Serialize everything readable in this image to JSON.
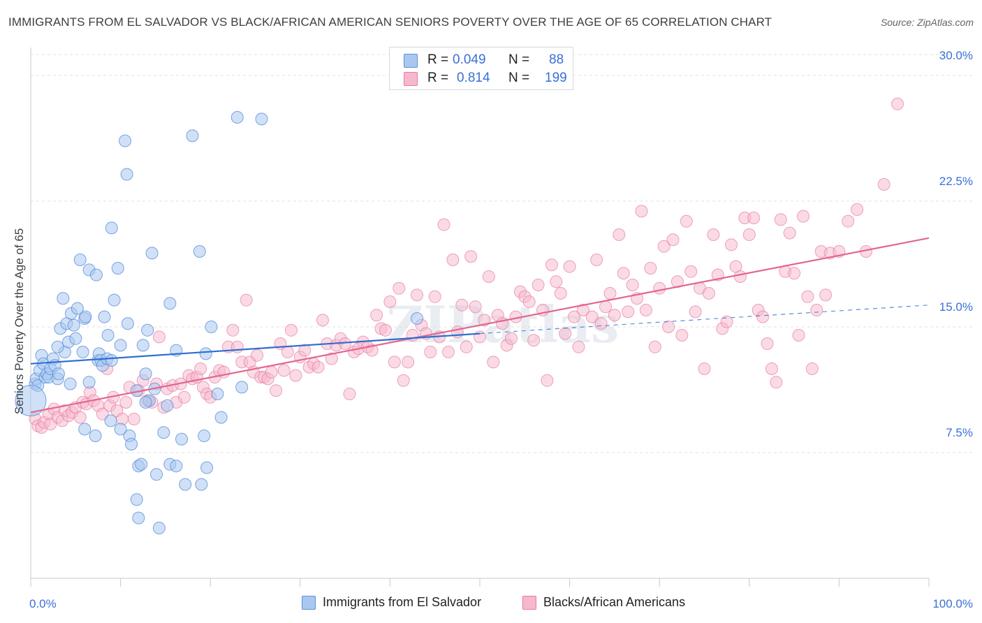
{
  "title": "IMMIGRANTS FROM EL SALVADOR VS BLACK/AFRICAN AMERICAN SENIORS POVERTY OVER THE AGE OF 65 CORRELATION CHART",
  "source": "Source: ZipAtlas.com",
  "watermark": "ZIPatlas",
  "legend": {
    "rows": [
      {
        "r_label": "R =",
        "r_value": "0.049",
        "n_label": "N =",
        "n_value": "88"
      },
      {
        "r_label": "R =",
        "r_value": "0.814",
        "n_label": "N =",
        "n_value": "199"
      }
    ]
  },
  "bottom_legend": [
    "Immigrants from El Salvador",
    "Blacks/African Americans"
  ],
  "colors": {
    "blue_fill": "#a9c8f0",
    "blue_stroke": "#5b8fd9",
    "blue_line": "#2f6fd0",
    "pink_fill": "#f5b8cc",
    "pink_stroke": "#e97aa0",
    "pink_line": "#e3668f",
    "tick_text": "#3a6fd8",
    "grid": "#e2e2e2"
  },
  "chart_data": {
    "type": "scatter",
    "title": "IMMIGRANTS FROM EL SALVADOR VS BLACK/AFRICAN AMERICAN SENIORS POVERTY OVER THE AGE OF 65 CORRELATION CHART",
    "xlabel": "",
    "ylabel": "Seniors Poverty Over the Age of 65",
    "xlim": [
      0,
      100
    ],
    "ylim": [
      0,
      31.5
    ],
    "x_ticks": [
      "0.0%",
      "100.0%"
    ],
    "y_ticks": [
      {
        "value": 7.5,
        "label": "7.5%"
      },
      {
        "value": 15.0,
        "label": "15.0%"
      },
      {
        "value": 22.5,
        "label": "22.5%"
      },
      {
        "value": 30.0,
        "label": "30.0%"
      }
    ],
    "grid": true,
    "legend_position": "top-center",
    "series": [
      {
        "name": "Immigrants from El Salvador",
        "R": 0.049,
        "N": 88,
        "trend": {
          "x0": 0,
          "y0": 12.8,
          "x1": 50,
          "y1": 14.6,
          "dashed_to_x": 100,
          "dashed_to_y": 16.3
        },
        "points": [
          [
            0.5,
            11.6
          ],
          [
            0.6,
            11.9
          ],
          [
            0.8,
            11.5
          ],
          [
            1.0,
            12.4
          ],
          [
            1.2,
            13.3
          ],
          [
            1.4,
            12.8
          ],
          [
            1.6,
            12.0
          ],
          [
            1.8,
            12.2
          ],
          [
            2.0,
            12.0
          ],
          [
            2.2,
            12.5
          ],
          [
            2.5,
            13.1
          ],
          [
            2.7,
            12.7
          ],
          [
            3.0,
            11.9
          ],
          [
            3.1,
            12.2
          ],
          [
            3.3,
            14.9
          ],
          [
            3.6,
            16.7
          ],
          [
            3.8,
            13.5
          ],
          [
            4.0,
            15.2
          ],
          [
            4.2,
            14.1
          ],
          [
            4.4,
            11.6
          ],
          [
            4.5,
            15.8
          ],
          [
            4.8,
            15.1
          ],
          [
            5.0,
            14.3
          ],
          [
            5.2,
            16.1
          ],
          [
            5.5,
            19.0
          ],
          [
            5.8,
            13.5
          ],
          [
            6.0,
            15.5
          ],
          [
            6.1,
            15.6
          ],
          [
            6.5,
            11.7
          ],
          [
            6.5,
            18.4
          ],
          [
            7.3,
            18.1
          ],
          [
            7.5,
            13.0
          ],
          [
            7.6,
            13.4
          ],
          [
            7.8,
            13.0
          ],
          [
            8.0,
            12.7
          ],
          [
            8.2,
            15.6
          ],
          [
            8.5,
            13.1
          ],
          [
            8.6,
            14.5
          ],
          [
            8.9,
            9.4
          ],
          [
            9.0,
            20.9
          ],
          [
            9.3,
            16.6
          ],
          [
            9.7,
            18.5
          ],
          [
            10.0,
            13.9
          ],
          [
            10.5,
            26.1
          ],
          [
            10.7,
            24.1
          ],
          [
            10.8,
            15.2
          ],
          [
            11.0,
            8.5
          ],
          [
            11.2,
            8.0
          ],
          [
            11.8,
            11.2
          ],
          [
            12.0,
            6.7
          ],
          [
            12.3,
            6.8
          ],
          [
            12.5,
            13.9
          ],
          [
            12.8,
            12.2
          ],
          [
            13.0,
            14.8
          ],
          [
            13.2,
            10.6
          ],
          [
            13.5,
            19.4
          ],
          [
            13.8,
            11.3
          ],
          [
            14.0,
            6.2
          ],
          [
            14.8,
            8.7
          ],
          [
            15.2,
            10.3
          ],
          [
            15.5,
            16.4
          ],
          [
            15.5,
            6.8
          ],
          [
            16.2,
            13.6
          ],
          [
            16.8,
            8.3
          ],
          [
            17.2,
            5.6
          ],
          [
            18.0,
            26.4
          ],
          [
            18.8,
            19.5
          ],
          [
            19.3,
            8.5
          ],
          [
            19.6,
            6.6
          ],
          [
            19.5,
            13.4
          ],
          [
            20.1,
            15.0
          ],
          [
            20.8,
            11.0
          ],
          [
            21.2,
            9.6
          ],
          [
            23.5,
            11.4
          ],
          [
            23.0,
            27.5
          ],
          [
            25.7,
            27.4
          ],
          [
            6.0,
            8.9
          ],
          [
            7.2,
            8.5
          ],
          [
            10.0,
            8.9
          ],
          [
            11.8,
            4.7
          ],
          [
            12.0,
            3.6
          ],
          [
            14.3,
            3.0
          ],
          [
            16.2,
            6.7
          ],
          [
            19.0,
            5.6
          ],
          [
            9.0,
            13.0
          ],
          [
            12.8,
            10.5
          ],
          [
            3.0,
            13.8
          ],
          [
            43.0,
            15.5
          ]
        ]
      },
      {
        "name": "Blacks/African Americans",
        "R": 0.814,
        "N": 199,
        "trend": {
          "x0": 0,
          "y0": 9.9,
          "x1": 100,
          "y1": 20.3
        },
        "points": [
          [
            0.5,
            9.5
          ],
          [
            0.8,
            9.1
          ],
          [
            1.2,
            9.0
          ],
          [
            1.5,
            9.3
          ],
          [
            2.0,
            9.8
          ],
          [
            2.2,
            9.2
          ],
          [
            2.6,
            10.1
          ],
          [
            3.0,
            9.6
          ],
          [
            3.5,
            9.4
          ],
          [
            3.8,
            10.0
          ],
          [
            4.2,
            9.7
          ],
          [
            4.6,
            9.9
          ],
          [
            5.0,
            10.2
          ],
          [
            5.5,
            9.6
          ],
          [
            5.8,
            10.5
          ],
          [
            6.2,
            10.4
          ],
          [
            6.6,
            11.1
          ],
          [
            7.0,
            10.6
          ],
          [
            7.5,
            10.3
          ],
          [
            8.0,
            9.8
          ],
          [
            8.5,
            12.5
          ],
          [
            8.8,
            10.3
          ],
          [
            9.2,
            10.8
          ],
          [
            9.6,
            10.0
          ],
          [
            10.2,
            9.5
          ],
          [
            10.6,
            10.5
          ],
          [
            11.0,
            11.4
          ],
          [
            11.5,
            9.5
          ],
          [
            12.0,
            11.2
          ],
          [
            12.5,
            11.8
          ],
          [
            13.0,
            10.6
          ],
          [
            13.5,
            10.5
          ],
          [
            14.0,
            11.6
          ],
          [
            14.3,
            14.4
          ],
          [
            14.8,
            10.2
          ],
          [
            15.2,
            11.3
          ],
          [
            15.8,
            11.5
          ],
          [
            16.2,
            10.5
          ],
          [
            16.7,
            11.6
          ],
          [
            17.1,
            10.8
          ],
          [
            17.6,
            12.1
          ],
          [
            18.0,
            11.9
          ],
          [
            18.5,
            12.0
          ],
          [
            18.9,
            12.5
          ],
          [
            19.2,
            11.4
          ],
          [
            19.6,
            11.0
          ],
          [
            20.0,
            10.8
          ],
          [
            20.5,
            12.0
          ],
          [
            21.0,
            12.4
          ],
          [
            21.5,
            12.3
          ],
          [
            22.0,
            13.8
          ],
          [
            22.5,
            14.8
          ],
          [
            23.0,
            13.8
          ],
          [
            23.5,
            12.9
          ],
          [
            24.0,
            16.6
          ],
          [
            24.4,
            12.9
          ],
          [
            24.8,
            12.3
          ],
          [
            25.2,
            13.3
          ],
          [
            25.6,
            12.0
          ],
          [
            26.0,
            12.0
          ],
          [
            26.4,
            11.9
          ],
          [
            26.8,
            12.3
          ],
          [
            27.3,
            11.2
          ],
          [
            27.8,
            14.0
          ],
          [
            28.2,
            12.4
          ],
          [
            28.6,
            13.5
          ],
          [
            29.0,
            14.8
          ],
          [
            29.5,
            12.1
          ],
          [
            30.0,
            13.2
          ],
          [
            30.5,
            13.6
          ],
          [
            31.0,
            12.6
          ],
          [
            31.5,
            12.8
          ],
          [
            32.0,
            12.6
          ],
          [
            32.5,
            15.4
          ],
          [
            33.0,
            14.0
          ],
          [
            33.5,
            13.1
          ],
          [
            34.0,
            13.9
          ],
          [
            34.5,
            14.3
          ],
          [
            35.0,
            14.0
          ],
          [
            35.5,
            11.0
          ],
          [
            36.0,
            13.5
          ],
          [
            36.5,
            13.7
          ],
          [
            37.0,
            14.1
          ],
          [
            37.5,
            13.8
          ],
          [
            38.0,
            13.6
          ],
          [
            38.5,
            15.7
          ],
          [
            39.0,
            14.9
          ],
          [
            39.5,
            14.8
          ],
          [
            40.0,
            16.5
          ],
          [
            40.5,
            12.9
          ],
          [
            41.0,
            17.3
          ],
          [
            41.5,
            11.8
          ],
          [
            42.0,
            12.9
          ],
          [
            42.5,
            14.5
          ],
          [
            43.0,
            16.9
          ],
          [
            43.5,
            15.1
          ],
          [
            44.0,
            14.6
          ],
          [
            44.5,
            13.5
          ],
          [
            45.0,
            16.8
          ],
          [
            45.5,
            14.4
          ],
          [
            46.0,
            21.1
          ],
          [
            46.5,
            13.5
          ],
          [
            47.0,
            19.0
          ],
          [
            47.5,
            14.7
          ],
          [
            48.0,
            16.3
          ],
          [
            48.5,
            13.8
          ],
          [
            49.0,
            19.2
          ],
          [
            49.5,
            16.2
          ],
          [
            50.0,
            14.4
          ],
          [
            50.5,
            15.4
          ],
          [
            51.0,
            18.0
          ],
          [
            51.5,
            12.9
          ],
          [
            52.0,
            15.7
          ],
          [
            52.5,
            15.2
          ],
          [
            53.0,
            13.9
          ],
          [
            53.5,
            14.3
          ],
          [
            54.0,
            15.6
          ],
          [
            54.5,
            17.1
          ],
          [
            55.0,
            16.8
          ],
          [
            55.5,
            16.5
          ],
          [
            56.0,
            14.2
          ],
          [
            56.5,
            17.5
          ],
          [
            57.0,
            16.0
          ],
          [
            57.5,
            11.8
          ],
          [
            58.0,
            18.7
          ],
          [
            58.5,
            17.7
          ],
          [
            59.0,
            17.0
          ],
          [
            59.5,
            14.6
          ],
          [
            60.0,
            18.6
          ],
          [
            60.5,
            15.6
          ],
          [
            61.0,
            13.8
          ],
          [
            61.5,
            16.0
          ],
          [
            62.5,
            15.6
          ],
          [
            63.0,
            19.0
          ],
          [
            63.5,
            15.2
          ],
          [
            64.0,
            16.2
          ],
          [
            64.5,
            17.0
          ],
          [
            65.0,
            15.7
          ],
          [
            65.5,
            20.5
          ],
          [
            66.0,
            18.2
          ],
          [
            66.5,
            15.9
          ],
          [
            67.0,
            17.5
          ],
          [
            67.5,
            16.7
          ],
          [
            68.0,
            21.9
          ],
          [
            68.5,
            16.0
          ],
          [
            69.0,
            18.5
          ],
          [
            69.5,
            13.8
          ],
          [
            70.0,
            17.3
          ],
          [
            70.5,
            19.8
          ],
          [
            71.0,
            15.0
          ],
          [
            71.5,
            20.2
          ],
          [
            72.0,
            17.7
          ],
          [
            72.5,
            14.5
          ],
          [
            73.0,
            21.3
          ],
          [
            73.5,
            18.3
          ],
          [
            74.0,
            15.9
          ],
          [
            74.5,
            17.3
          ],
          [
            75.0,
            12.5
          ],
          [
            75.5,
            17.0
          ],
          [
            76.0,
            20.5
          ],
          [
            76.5,
            18.1
          ],
          [
            77.0,
            14.9
          ],
          [
            77.5,
            15.3
          ],
          [
            78.0,
            19.9
          ],
          [
            78.5,
            18.6
          ],
          [
            79.0,
            18.0
          ],
          [
            79.5,
            21.5
          ],
          [
            80.0,
            20.5
          ],
          [
            80.5,
            21.5
          ],
          [
            81.0,
            16.0
          ],
          [
            81.5,
            15.6
          ],
          [
            82.0,
            14.0
          ],
          [
            82.5,
            12.5
          ],
          [
            83.0,
            11.7
          ],
          [
            83.5,
            21.4
          ],
          [
            84.0,
            18.3
          ],
          [
            84.5,
            20.6
          ],
          [
            85.0,
            18.2
          ],
          [
            85.5,
            14.5
          ],
          [
            86.0,
            21.6
          ],
          [
            86.5,
            16.8
          ],
          [
            87.0,
            12.5
          ],
          [
            87.5,
            16.0
          ],
          [
            88.0,
            19.5
          ],
          [
            88.5,
            16.9
          ],
          [
            89.0,
            19.4
          ],
          [
            90.0,
            19.5
          ],
          [
            91.0,
            21.3
          ],
          [
            92.0,
            22.0
          ],
          [
            93.0,
            19.5
          ],
          [
            95.0,
            23.5
          ],
          [
            96.5,
            28.3
          ]
        ]
      }
    ]
  }
}
